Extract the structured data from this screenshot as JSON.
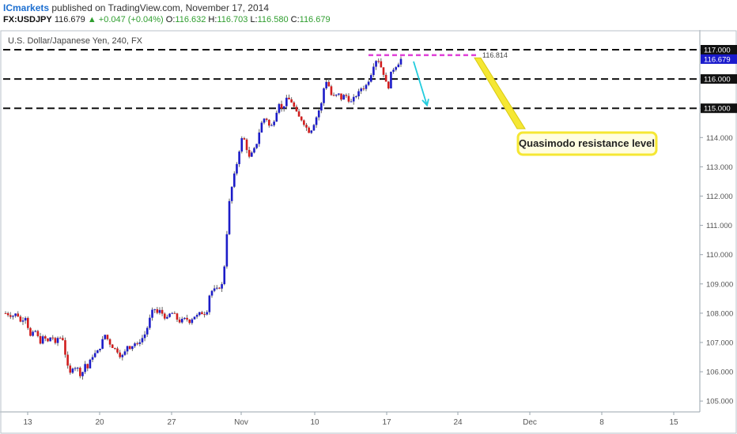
{
  "header": {
    "author": "ICmarkets",
    "published_text": "published on TradingView.com, November 17, 2014",
    "symbol": "FX:USDJPY",
    "last": "116.679",
    "change": "▲ +0.047 (+0.04%)",
    "open_label": "O:",
    "open": "116.632",
    "high_label": "H:",
    "high": "116.703",
    "low_label": "L:",
    "low": "116.580",
    "close_label": "C:",
    "close": "116.679"
  },
  "chart_data": {
    "type": "candlestick",
    "title": "U.S. Dollar/Japanese Yen, 240, FX",
    "ylim": [
      104.75,
      117.2
    ],
    "y_ticks": [
      "117.000",
      "116.000",
      "115.000",
      "114.000",
      "113.000",
      "112.000",
      "111.000",
      "110.000",
      "109.000",
      "108.000",
      "107.000",
      "106.000",
      "105.000"
    ],
    "x_ticks": [
      "13",
      "20",
      "27",
      "Nov",
      "10",
      "17",
      "24",
      "Dec",
      "8",
      "15"
    ],
    "levels": [
      {
        "value": 117.0,
        "label": "117.000",
        "style": "dashed-black"
      },
      {
        "value": 116.0,
        "label": "116.000",
        "style": "dashed-black"
      },
      {
        "value": 115.0,
        "label": "115.000",
        "style": "dashed-black"
      },
      {
        "value": 116.814,
        "label": "116.814",
        "style": "dashed-magenta"
      }
    ],
    "last_price": "116.679",
    "annotation": "Quasimodo resistance level",
    "colors": {
      "up": "#1c1cc8",
      "down": "#d11d1d",
      "magenta": "#e040d8",
      "cyan": "#22ccdd",
      "callout": "#f5e733",
      "last_badge": "#1a1acc"
    },
    "candle_path": [
      [
        0,
        108.0
      ],
      [
        8,
        107.9
      ],
      [
        14,
        108.0
      ],
      [
        18,
        107.7
      ],
      [
        24,
        107.9
      ],
      [
        30,
        107.2
      ],
      [
        36,
        107.4
      ],
      [
        42,
        107.0
      ],
      [
        46,
        107.2
      ],
      [
        52,
        107.0
      ],
      [
        56,
        107.3
      ],
      [
        60,
        106.9
      ],
      [
        64,
        107.2
      ],
      [
        70,
        107.1
      ],
      [
        74,
        106.3
      ],
      [
        78,
        105.9
      ],
      [
        82,
        106.2
      ],
      [
        88,
        106.1
      ],
      [
        92,
        105.8
      ],
      [
        96,
        106.3
      ],
      [
        100,
        106.1
      ],
      [
        104,
        106.5
      ],
      [
        108,
        106.6
      ],
      [
        112,
        106.7
      ],
      [
        116,
        106.9
      ],
      [
        120,
        107.3
      ],
      [
        124,
        107.1
      ],
      [
        128,
        106.9
      ],
      [
        132,
        106.8
      ],
      [
        136,
        106.7
      ],
      [
        140,
        106.5
      ],
      [
        144,
        106.6
      ],
      [
        148,
        106.9
      ],
      [
        152,
        106.8
      ],
      [
        156,
        107.0
      ],
      [
        160,
        106.9
      ],
      [
        164,
        107.1
      ],
      [
        168,
        107.2
      ],
      [
        172,
        107.5
      ],
      [
        176,
        107.9
      ],
      [
        180,
        108.2
      ],
      [
        184,
        108.0
      ],
      [
        188,
        108.1
      ],
      [
        192,
        107.9
      ],
      [
        196,
        107.8
      ],
      [
        200,
        108.0
      ],
      [
        204,
        108.0
      ],
      [
        208,
        107.8
      ],
      [
        212,
        107.7
      ],
      [
        216,
        107.8
      ],
      [
        220,
        107.8
      ],
      [
        224,
        107.7
      ],
      [
        228,
        107.9
      ],
      [
        232,
        107.9
      ],
      [
        236,
        108.0
      ],
      [
        240,
        108.0
      ],
      [
        244,
        108.0
      ],
      [
        248,
        108.7
      ],
      [
        252,
        108.8
      ],
      [
        256,
        108.8
      ],
      [
        260,
        108.9
      ],
      [
        264,
        109.0
      ],
      [
        268,
        110.5
      ],
      [
        272,
        111.9
      ],
      [
        276,
        112.5
      ],
      [
        280,
        113.0
      ],
      [
        284,
        113.6
      ],
      [
        288,
        114.1
      ],
      [
        292,
        113.7
      ],
      [
        296,
        113.3
      ],
      [
        300,
        113.5
      ],
      [
        304,
        113.7
      ],
      [
        308,
        114.2
      ],
      [
        312,
        114.6
      ],
      [
        316,
        114.7
      ],
      [
        320,
        114.4
      ],
      [
        324,
        114.4
      ],
      [
        328,
        114.8
      ],
      [
        332,
        115.2
      ],
      [
        336,
        114.9
      ],
      [
        340,
        115.3
      ],
      [
        344,
        115.3
      ],
      [
        348,
        115.2
      ],
      [
        352,
        114.9
      ],
      [
        356,
        114.7
      ],
      [
        360,
        114.6
      ],
      [
        364,
        114.4
      ],
      [
        368,
        114.2
      ],
      [
        372,
        114.3
      ],
      [
        376,
        114.6
      ],
      [
        380,
        114.9
      ],
      [
        384,
        115.2
      ],
      [
        388,
        116.0
      ],
      [
        392,
        115.8
      ],
      [
        396,
        115.4
      ],
      [
        400,
        115.4
      ],
      [
        404,
        115.5
      ],
      [
        408,
        115.3
      ],
      [
        412,
        115.5
      ],
      [
        416,
        115.3
      ],
      [
        420,
        115.2
      ],
      [
        424,
        115.4
      ],
      [
        428,
        115.5
      ],
      [
        432,
        115.7
      ],
      [
        436,
        115.7
      ],
      [
        440,
        115.9
      ],
      [
        444,
        116.2
      ],
      [
        448,
        116.6
      ],
      [
        452,
        116.7
      ],
      [
        456,
        116.4
      ],
      [
        460,
        116.1
      ],
      [
        464,
        115.6
      ],
      [
        468,
        116.2
      ],
      [
        472,
        116.4
      ],
      [
        476,
        116.5
      ],
      [
        480,
        116.68
      ]
    ]
  }
}
